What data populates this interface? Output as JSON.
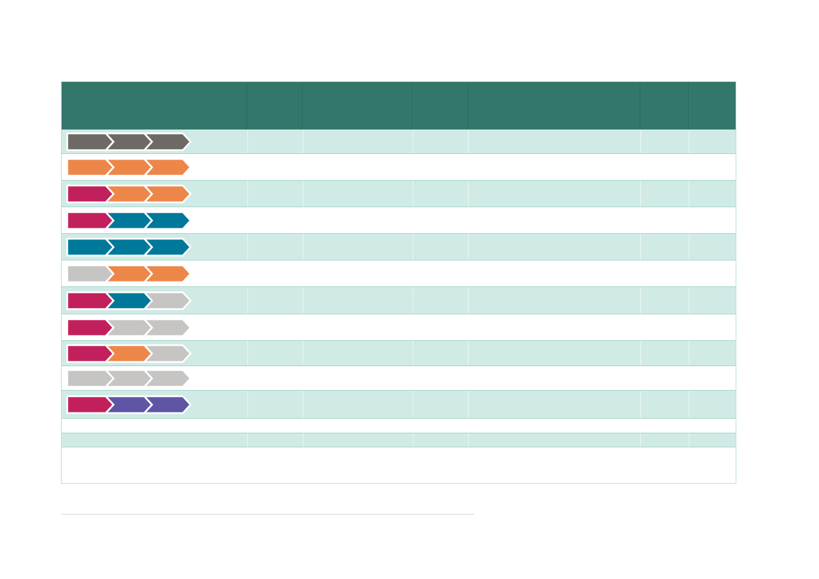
{
  "colors": {
    "header": "#33776b",
    "band": "#d0eae6",
    "row_border": "#a9d6ce",
    "grey_dark": "#6d6a66",
    "orange": "#ec8749",
    "magenta": "#c2205c",
    "teal": "#00789a",
    "grey_light": "#c6c5c3",
    "purple": "#5f55a5"
  },
  "rows": [
    {
      "style": "band",
      "chevrons": [
        "grey_dark",
        "grey_dark",
        "grey_dark"
      ]
    },
    {
      "style": "plain",
      "chevrons": [
        "orange",
        "orange",
        "orange"
      ]
    },
    {
      "style": "band",
      "chevrons": [
        "magenta",
        "orange",
        "orange"
      ]
    },
    {
      "style": "plain",
      "chevrons": [
        "magenta",
        "teal",
        "teal"
      ]
    },
    {
      "style": "band",
      "chevrons": [
        "teal",
        "teal",
        "teal"
      ]
    },
    {
      "style": "plain",
      "chevrons": [
        "grey_light",
        "orange",
        "orange"
      ]
    },
    {
      "style": "band",
      "chevrons": [
        "magenta",
        "teal",
        "grey_light"
      ]
    },
    {
      "style": "plain",
      "chevrons": [
        "magenta",
        "grey_light",
        "grey_light"
      ]
    },
    {
      "style": "band",
      "chevrons": [
        "magenta",
        "orange",
        "grey_light"
      ]
    },
    {
      "style": "plain",
      "chevrons": [
        "grey_light",
        "grey_light",
        "grey_light"
      ]
    },
    {
      "style": "band",
      "chevrons": [
        "magenta",
        "purple",
        "purple"
      ]
    },
    {
      "style": "plain",
      "chevrons": []
    },
    {
      "style": "band",
      "chevrons": []
    },
    {
      "style": "plain",
      "chevrons": []
    }
  ]
}
